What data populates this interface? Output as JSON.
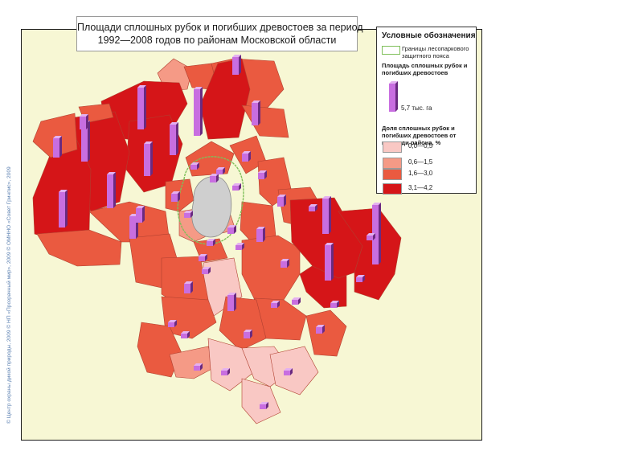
{
  "title": {
    "line1": "Площади сплошных рубок и погибших древостоев за период",
    "line2": "1992—2008 годов по районам Московской области"
  },
  "legend": {
    "heading": "Условные обозначения",
    "border_label": "Границы лесопаркового защитного пояса",
    "area_heading": "Площадь сплошных рубок и погибших древостоев",
    "bar_label": "5,7 тыс. га",
    "share_heading": "Доля сплошных рубок и погибших древостоев от площади района, %",
    "classes": [
      {
        "label": "0,0—0,5",
        "color": "#f9c8c4"
      },
      {
        "label": "0,6—1,5",
        "color": "#f59a86"
      },
      {
        "label": "1,6—3,0",
        "color": "#ea5a40"
      },
      {
        "label": "3,1—4,2",
        "color": "#d51518"
      }
    ]
  },
  "colors": {
    "background": "#f7f7d4",
    "moscow": "#cfcfcf",
    "bar": "#c86ee0",
    "forest_belt_border": "#7fbf5a"
  },
  "credit": "© Центр охраны дикой природы, 2009 © НП «Прозрачный мир», 2009 © ОМННО «Совет Гринпис», 2009"
}
